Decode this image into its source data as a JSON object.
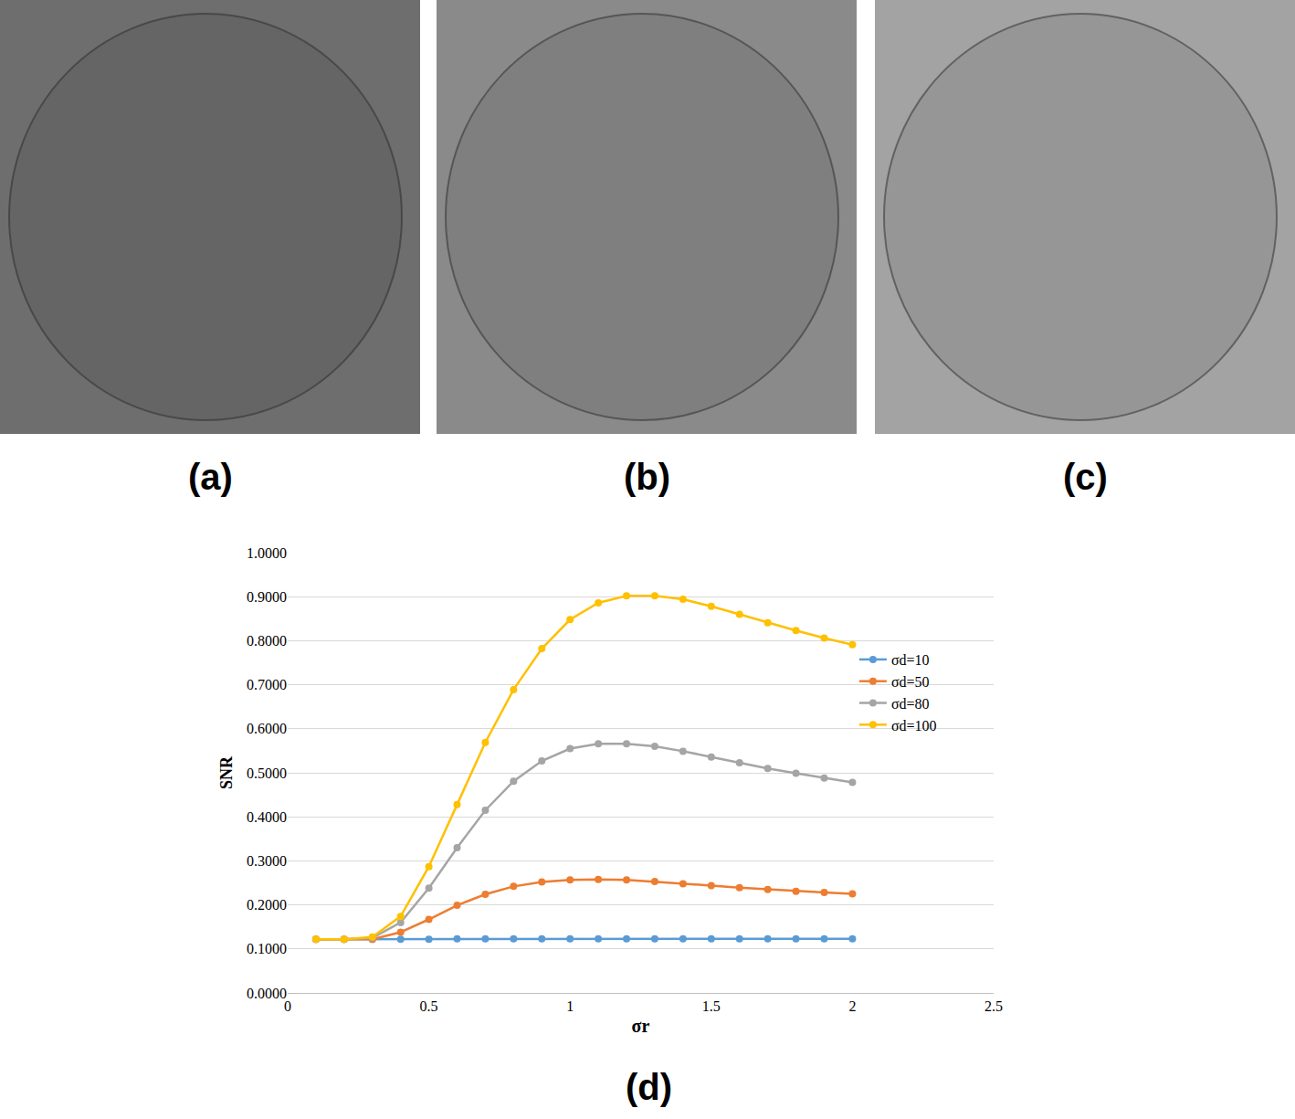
{
  "panels": [
    {
      "label": "(a)"
    },
    {
      "label": "(b)"
    },
    {
      "label": "(c)"
    }
  ],
  "chart_data": {
    "type": "line",
    "panel_label": "(d)",
    "x_label": "σr",
    "y_label": "SNR",
    "x": [
      0.1,
      0.2,
      0.3,
      0.4,
      0.5,
      0.6,
      0.7,
      0.8,
      0.9,
      1.0,
      1.1,
      1.2,
      1.3,
      1.4,
      1.5,
      1.6,
      1.7,
      1.8,
      1.9,
      2.0
    ],
    "series": [
      {
        "name": "σd=10",
        "color": "#5b9bd5",
        "values": [
          0.122,
          0.122,
          0.122,
          0.122,
          0.122,
          0.123,
          0.123,
          0.123,
          0.123,
          0.123,
          0.123,
          0.123,
          0.123,
          0.123,
          0.123,
          0.123,
          0.123,
          0.123,
          0.123,
          0.123
        ]
      },
      {
        "name": "σd=50",
        "color": "#ed7d31",
        "values": [
          0.122,
          0.122,
          0.122,
          0.138,
          0.167,
          0.199,
          0.224,
          0.242,
          0.252,
          0.257,
          0.258,
          0.257,
          0.253,
          0.248,
          0.244,
          0.239,
          0.235,
          0.231,
          0.228,
          0.225
        ]
      },
      {
        "name": "σd=80",
        "color": "#a5a5a5",
        "values": [
          0.122,
          0.122,
          0.125,
          0.16,
          0.238,
          0.33,
          0.415,
          0.481,
          0.527,
          0.555,
          0.566,
          0.566,
          0.56,
          0.549,
          0.536,
          0.523,
          0.51,
          0.499,
          0.488,
          0.478
        ]
      },
      {
        "name": "σd=100",
        "color": "#ffc000",
        "values": [
          0.122,
          0.122,
          0.127,
          0.174,
          0.287,
          0.428,
          0.569,
          0.689,
          0.782,
          0.848,
          0.886,
          0.902,
          0.902,
          0.894,
          0.878,
          0.86,
          0.841,
          0.823,
          0.806,
          0.791
        ]
      }
    ],
    "xlim": [
      0,
      2.5
    ],
    "xticks": [
      0,
      0.5,
      1,
      1.5,
      2,
      2.5
    ],
    "ylim": [
      0,
      1
    ],
    "yticks": [
      {
        "value": 0,
        "label": "0.0000"
      },
      {
        "value": 0.1,
        "label": "0.1000"
      },
      {
        "value": 0.2,
        "label": "0.2000"
      },
      {
        "value": 0.3,
        "label": "0.3000"
      },
      {
        "value": 0.4,
        "label": "0.4000"
      },
      {
        "value": 0.5,
        "label": "0.5000"
      },
      {
        "value": 0.6,
        "label": "0.6000"
      },
      {
        "value": 0.7,
        "label": "0.7000"
      },
      {
        "value": 0.8,
        "label": "0.8000"
      },
      {
        "value": 0.9,
        "label": "0.9000"
      },
      {
        "value": 1,
        "label": "1.0000"
      }
    ],
    "grid": true,
    "legend": "right",
    "marker": "circle",
    "line_style": "solid"
  }
}
